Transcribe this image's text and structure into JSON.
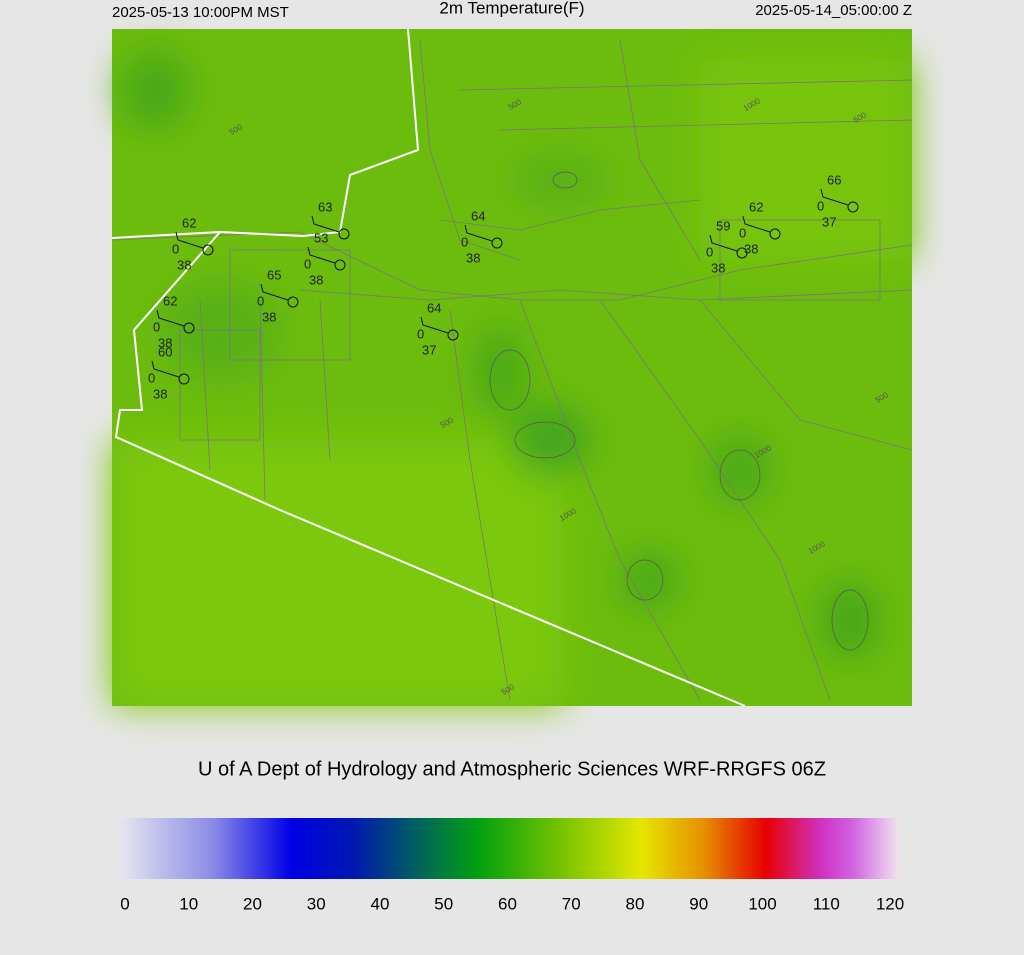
{
  "header": {
    "left": "2025-05-13 10:00PM MST",
    "title": "2m Temperature(F)",
    "right": "2025-05-14_05:00:00 Z"
  },
  "stations": [
    {
      "temp": 62,
      "flag": 0,
      "dew": 38
    },
    {
      "temp": 63
    },
    {
      "temp": 53,
      "flag": 0,
      "dew": 38
    },
    {
      "temp": 65,
      "flag": 0,
      "dew": 38
    },
    {
      "temp": 62,
      "flag": 0,
      "dew": 38
    },
    {
      "temp": 60,
      "flag": 0,
      "dew": 38
    },
    {
      "temp": 64,
      "flag": 0,
      "dew": 37
    },
    {
      "temp": 64,
      "flag": 0,
      "dew": 38
    },
    {
      "temp": 59,
      "flag": 0,
      "dew": 38
    },
    {
      "temp": 62,
      "flag": 0,
      "dew": 38
    },
    {
      "temp": 66,
      "flag": 0,
      "dew": 37
    }
  ],
  "contour_labels": [
    500,
    1000,
    500,
    500,
    500,
    1000,
    1000,
    1000,
    500,
    500
  ],
  "credit": "U of A Dept of Hydrology and Atmospheric Sciences WRF-RRGFS 06Z",
  "colorbar": {
    "lim": [
      0,
      120
    ],
    "ticks": [
      0,
      10,
      20,
      30,
      40,
      50,
      60,
      70,
      80,
      90,
      100,
      110,
      120
    ]
  }
}
